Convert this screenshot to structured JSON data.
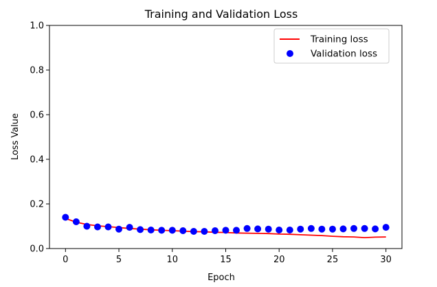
{
  "chart_data": {
    "type": "line",
    "title": "Training and Validation Loss",
    "xlabel": "Epoch",
    "ylabel": "Loss Value",
    "xlim": [
      -1.5,
      31.5
    ],
    "ylim": [
      0,
      1.0
    ],
    "xticks": [
      0,
      5,
      10,
      15,
      20,
      25,
      30
    ],
    "yticks": [
      0.0,
      0.2,
      0.4,
      0.6,
      0.8,
      1.0
    ],
    "xtick_labels": [
      "0",
      "5",
      "10",
      "15",
      "20",
      "25",
      "30"
    ],
    "ytick_labels": [
      "0.0",
      "0.2",
      "0.4",
      "0.6",
      "0.8",
      "1.0"
    ],
    "grid": false,
    "legend_position": "top-right",
    "x": [
      0,
      1,
      2,
      3,
      4,
      5,
      6,
      7,
      8,
      9,
      10,
      11,
      12,
      13,
      14,
      15,
      16,
      17,
      18,
      19,
      20,
      21,
      22,
      23,
      24,
      25,
      26,
      27,
      28,
      29,
      30
    ],
    "series": [
      {
        "name": "Training loss",
        "style": "line",
        "color": "#ff0000",
        "values": [
          0.135,
          0.118,
          0.108,
          0.102,
          0.098,
          0.094,
          0.09,
          0.087,
          0.084,
          0.082,
          0.08,
          0.078,
          0.076,
          0.075,
          0.073,
          0.072,
          0.07,
          0.069,
          0.068,
          0.067,
          0.065,
          0.064,
          0.062,
          0.06,
          0.058,
          0.055,
          0.053,
          0.052,
          0.049,
          0.051,
          0.052
        ]
      },
      {
        "name": "Validation loss",
        "style": "markers",
        "color": "#0000ff",
        "values": [
          0.14,
          0.12,
          0.1,
          0.097,
          0.097,
          0.087,
          0.095,
          0.085,
          0.083,
          0.082,
          0.082,
          0.08,
          0.077,
          0.077,
          0.08,
          0.082,
          0.082,
          0.09,
          0.088,
          0.087,
          0.083,
          0.083,
          0.087,
          0.09,
          0.087,
          0.087,
          0.088,
          0.09,
          0.09,
          0.088,
          0.095
        ]
      }
    ]
  }
}
